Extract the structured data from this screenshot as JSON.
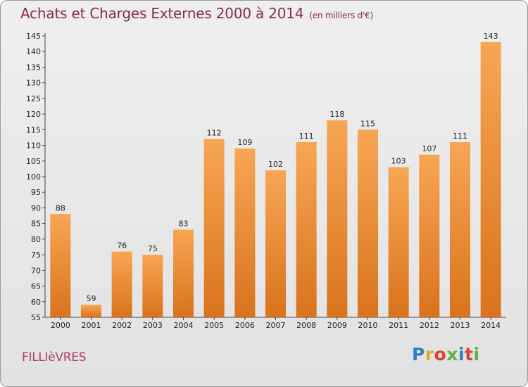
{
  "title": "Achats et Charges Externes 2000 à 2014",
  "unit": "(en milliers d'€)",
  "commune": "FILLIèVRES",
  "logo": {
    "letters": [
      "P",
      "r",
      "o",
      "x",
      "i",
      "t",
      "i"
    ],
    "colors": [
      "#2c7fc9",
      "#e5a425",
      "#e0412f",
      "#59b347",
      "#2c7fc9",
      "#e0412f",
      "#59b347"
    ]
  },
  "colors": {
    "bar_top": "#f7a654",
    "bar_bottom": "#d9731c",
    "title": "#8b2a4a",
    "commune": "#b03c70"
  },
  "chart_data": {
    "type": "bar",
    "title": "Achats et Charges Externes 2000 à 2014",
    "categories": [
      "2000",
      "2001",
      "2002",
      "2003",
      "2004",
      "2005",
      "2006",
      "2007",
      "2008",
      "2009",
      "2010",
      "2011",
      "2012",
      "2013",
      "2014"
    ],
    "values": [
      88,
      59,
      76,
      75,
      83,
      112,
      109,
      102,
      111,
      118,
      115,
      103,
      107,
      111,
      143
    ],
    "ylim": [
      55,
      145
    ],
    "yticks": [
      55,
      60,
      65,
      70,
      75,
      80,
      85,
      90,
      95,
      100,
      105,
      110,
      115,
      120,
      125,
      130,
      135,
      140,
      145
    ],
    "grid": false,
    "xlabel": "",
    "ylabel": ""
  }
}
